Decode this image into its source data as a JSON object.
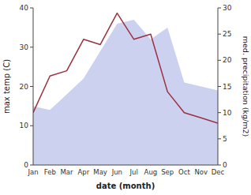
{
  "chart_data": {
    "type": "line",
    "categories": [
      "Jan",
      "Feb",
      "Mar",
      "Apr",
      "May",
      "Jun",
      "Jul",
      "Aug",
      "Sep",
      "Oct",
      "Nov",
      "Dec"
    ],
    "xlabel": "date (month)",
    "ylabel": "max temp (C)",
    "y2label": "med. precipitation (kg/m2)",
    "ylim": [
      0,
      40
    ],
    "yticks": [
      0,
      10,
      20,
      30,
      40
    ],
    "y2lim": [
      0,
      30
    ],
    "y2ticks": [
      0,
      5,
      10,
      15,
      20,
      25,
      30
    ],
    "series": [
      {
        "type": "area",
        "color": "#b0b8e8",
        "values": [
          15,
          14,
          18,
          22,
          29,
          36,
          37,
          32,
          35,
          21,
          20,
          19
        ]
      },
      {
        "type": "line",
        "color": "#9b3040",
        "axis": "y2",
        "values": [
          10,
          17,
          18,
          24,
          23,
          29,
          24,
          25,
          14,
          10,
          9,
          8
        ]
      }
    ]
  }
}
